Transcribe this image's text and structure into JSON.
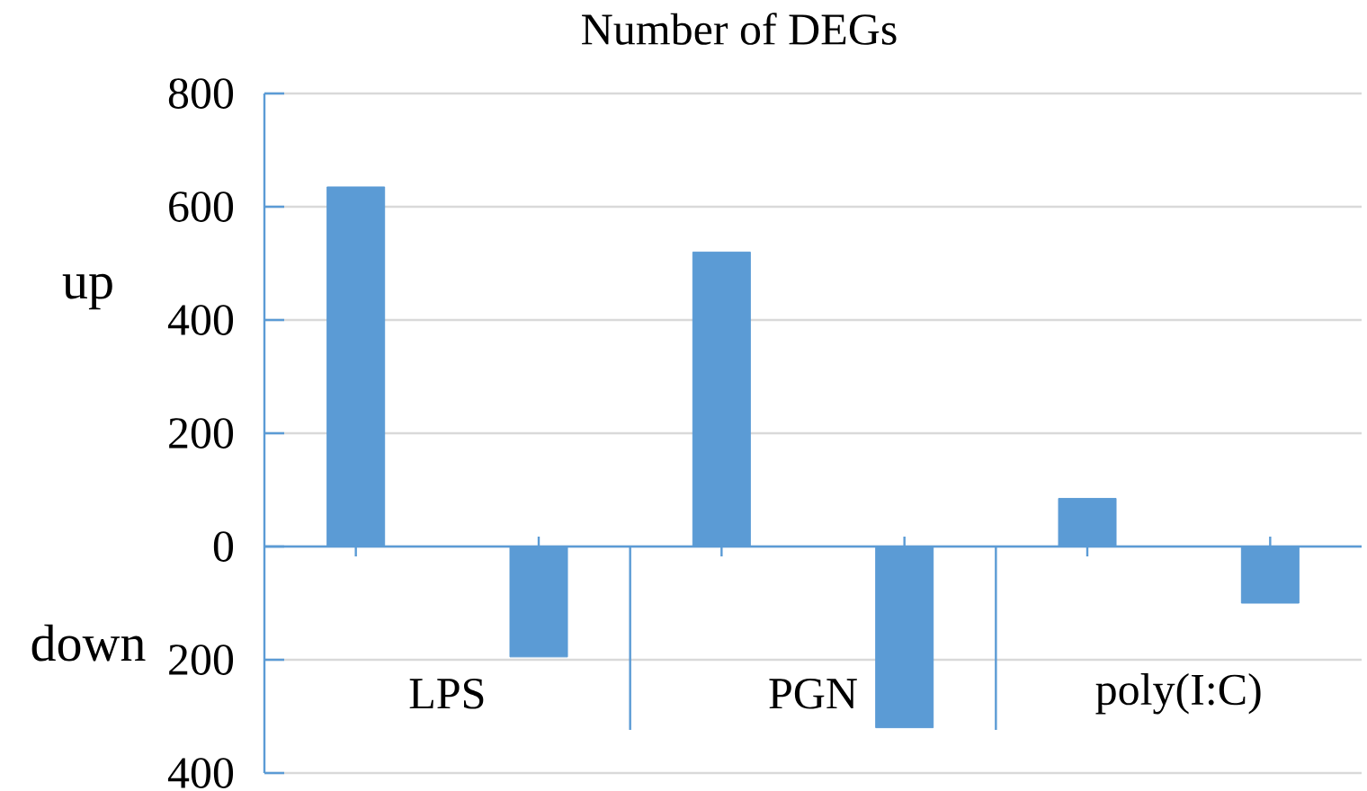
{
  "chart_data": {
    "type": "bar",
    "title": "Number of DEGs",
    "categories": [
      "LPS",
      "PGN",
      "poly(I:C)"
    ],
    "series": [
      {
        "color": "#5b9bd5",
        "values": [
          635,
          520,
          85
        ]
      },
      {
        "color": "#5b9bd5",
        "values": [
          -195,
          -320,
          -100
        ]
      }
    ],
    "ylim": [
      -400,
      800
    ],
    "yticks": [
      {
        "value": -400,
        "label": "400"
      },
      {
        "value": -200,
        "label": "200"
      },
      0,
      200,
      400,
      600,
      800
    ],
    "grid": "y",
    "ref_lines": [
      {
        "axis": "y",
        "value": 0,
        "color": "#5b9bd5"
      }
    ],
    "annotations": [
      "up",
      "down"
    ]
  }
}
